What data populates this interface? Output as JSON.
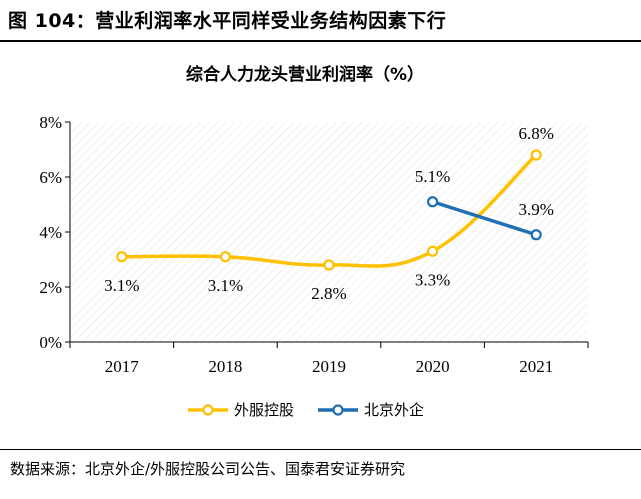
{
  "figure_title": "图 104：营业利润率水平同样受业务结构因素下行",
  "source": "数据来源：北京外企/外服控股公司公告、国泰君安证券研究",
  "chart_data": {
    "type": "line",
    "title": "综合人力龙头营业利润率（%）",
    "categories": [
      "2017",
      "2018",
      "2019",
      "2020",
      "2021"
    ],
    "yticks": [
      "0%",
      "2%",
      "4%",
      "6%",
      "8%"
    ],
    "ylim": [
      0,
      8
    ],
    "grid": false,
    "plot_background": "hatched",
    "legend_position": "bottom",
    "series": [
      {
        "name": "外服控股",
        "color": "#FFC000",
        "values": [
          3.1,
          3.1,
          2.8,
          3.3,
          6.8
        ],
        "labels": [
          "3.1%",
          "3.1%",
          "2.8%",
          "3.3%",
          "6.8%"
        ]
      },
      {
        "name": "北京外企",
        "color": "#1F6FB4",
        "values": [
          null,
          null,
          null,
          5.1,
          3.9
        ],
        "labels": [
          null,
          null,
          null,
          "5.1%",
          "3.9%"
        ]
      }
    ]
  }
}
